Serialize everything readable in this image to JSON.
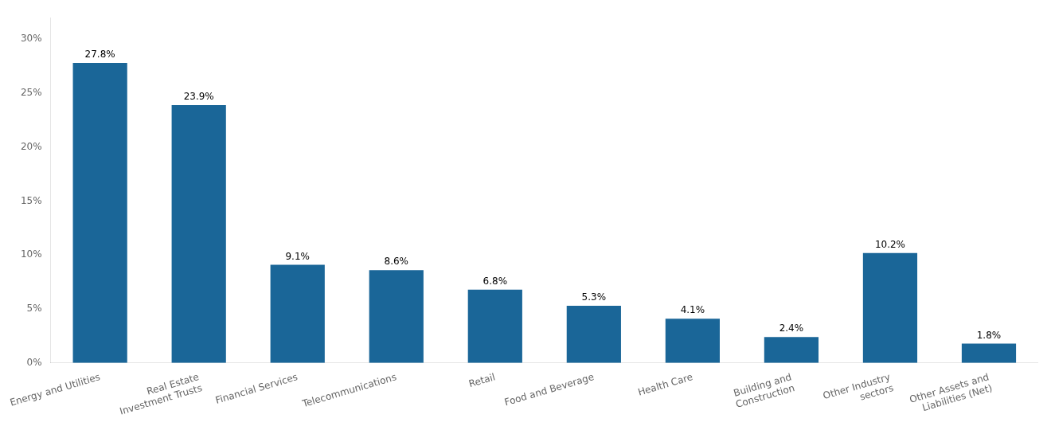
{
  "chart_data": {
    "type": "bar",
    "categories": [
      "Energy and Utilities",
      "Real Estate\nInvestment Trusts",
      "Financial Services",
      "Telecommunications",
      "Retail",
      "Food and Beverage",
      "Health Care",
      "Building and\nConstruction",
      "Other Industry\nsectors",
      "Other Assets and\nLiabilities (Net)"
    ],
    "values": [
      27.8,
      23.9,
      9.1,
      8.6,
      6.8,
      5.3,
      4.1,
      2.4,
      10.2,
      1.8
    ],
    "value_labels": [
      "27.8%",
      "23.9%",
      "9.1%",
      "8.6%",
      "6.8%",
      "5.3%",
      "4.1%",
      "2.4%",
      "10.2%",
      "1.8%"
    ],
    "data_labels": true,
    "color": "#1a6698",
    "ylim": [
      0,
      32
    ],
    "yticks": [
      {
        "value": 0,
        "label": "0%"
      },
      {
        "value": 5,
        "label": "5%"
      },
      {
        "value": 10,
        "label": "10%"
      },
      {
        "value": 15,
        "label": "15%"
      },
      {
        "value": 20,
        "label": "20%"
      },
      {
        "value": 25,
        "label": "25%"
      },
      {
        "value": 30,
        "label": "30%"
      }
    ],
    "grid": false
  }
}
